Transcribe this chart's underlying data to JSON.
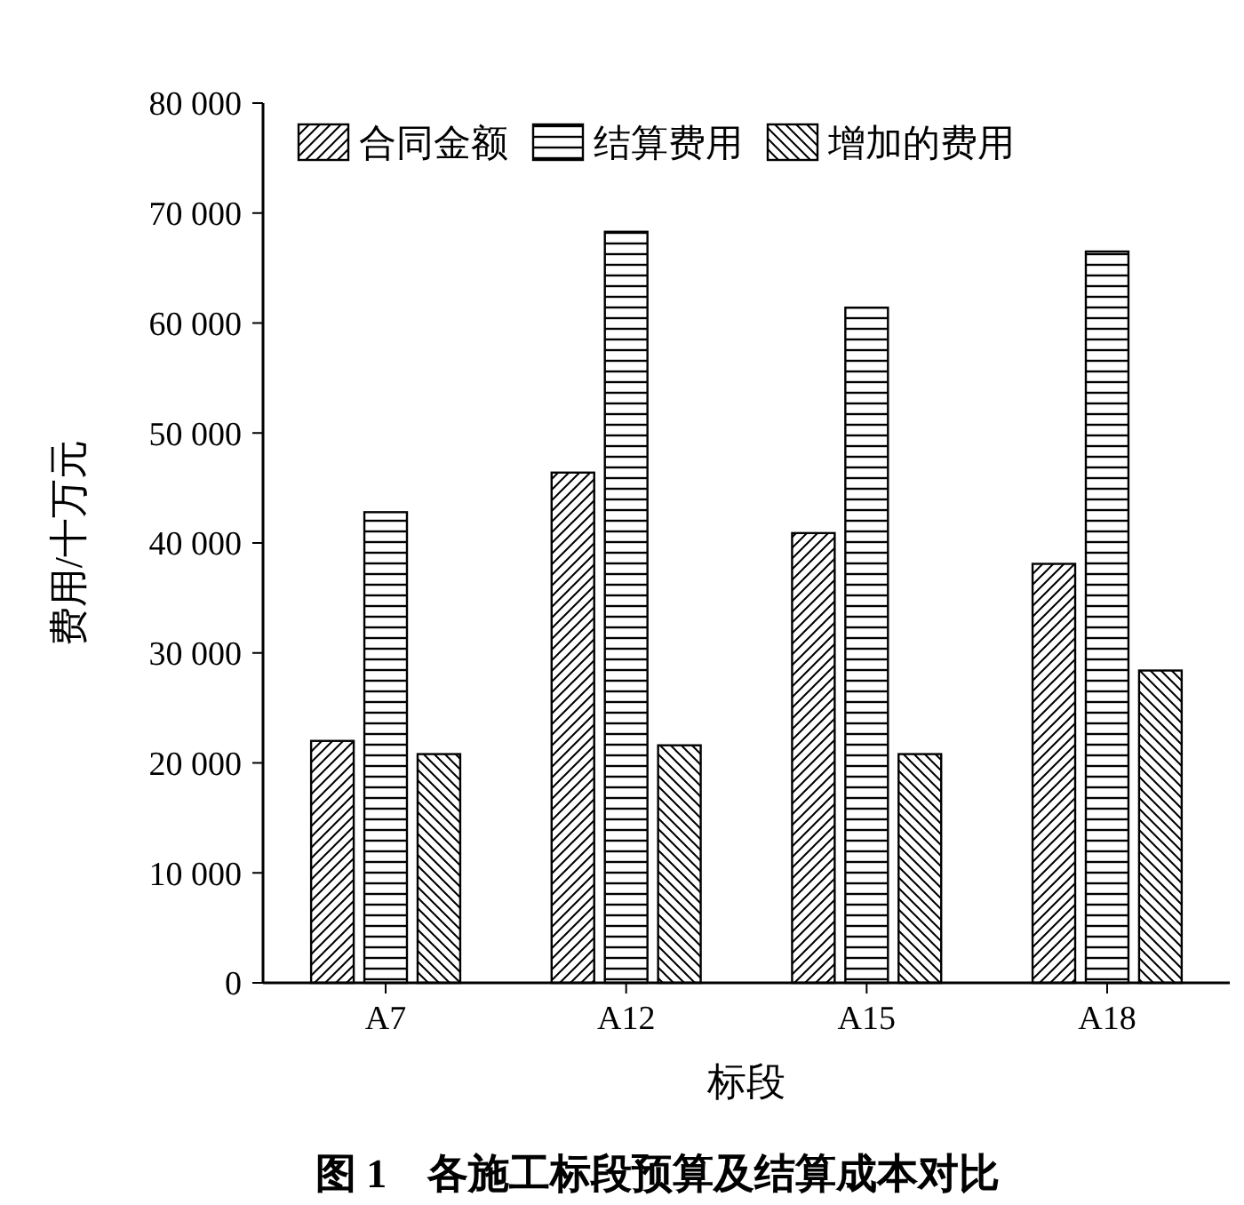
{
  "chart_data": {
    "type": "bar",
    "title": "图 1　各施工标段预算及结算成本对比",
    "xlabel": "标段",
    "ylabel": "费用/十万元",
    "categories": [
      "A7",
      "A12",
      "A15",
      "A18"
    ],
    "series": [
      {
        "name": "合同金额",
        "color": "#000000",
        "values": [
          22000,
          46400,
          40900,
          38100
        ]
      },
      {
        "name": "结算费用",
        "color": "#000000",
        "values": [
          42800,
          68300,
          61400,
          66500
        ]
      },
      {
        "name": "增加的费用",
        "color": "#000000",
        "values": [
          20800,
          21600,
          20800,
          28400
        ]
      }
    ],
    "ylim": [
      0,
      80000
    ],
    "yticks": [
      0,
      {
        "value": 10000,
        "label": "10 000"
      },
      {
        "value": 20000,
        "label": "20 000"
      },
      {
        "value": 30000,
        "label": "30 000"
      },
      {
        "value": 40000,
        "label": "40 000"
      },
      {
        "value": 50000,
        "label": "50 000"
      },
      {
        "value": 60000,
        "label": "60 000"
      },
      {
        "value": 70000,
        "label": "70 000"
      },
      {
        "value": 80000,
        "label": "80 000"
      }
    ],
    "legend": "top",
    "grid": false
  }
}
